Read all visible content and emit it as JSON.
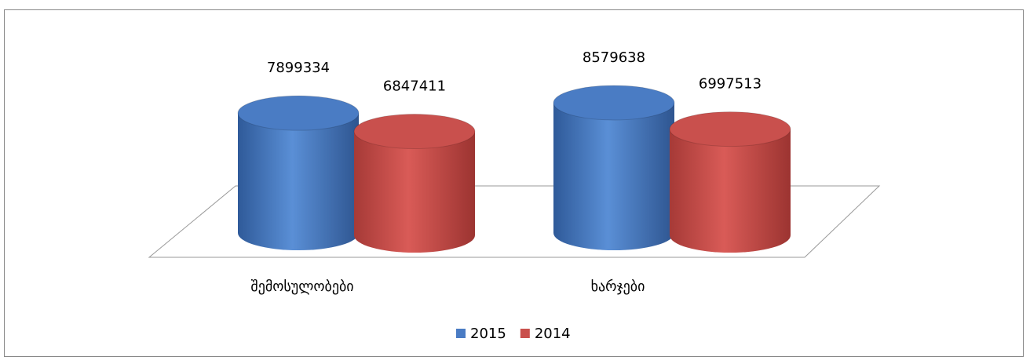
{
  "chart_data": {
    "type": "cylinder",
    "categories": [
      "შემოსულობები",
      "ხარჯები"
    ],
    "series": [
      {
        "name": "2015",
        "color": "#4a7cc4",
        "values": [
          7899334,
          8579638
        ]
      },
      {
        "name": "2014",
        "color": "#c9504d",
        "values": [
          6847411,
          6997513
        ]
      }
    ],
    "legend": "bottom"
  }
}
